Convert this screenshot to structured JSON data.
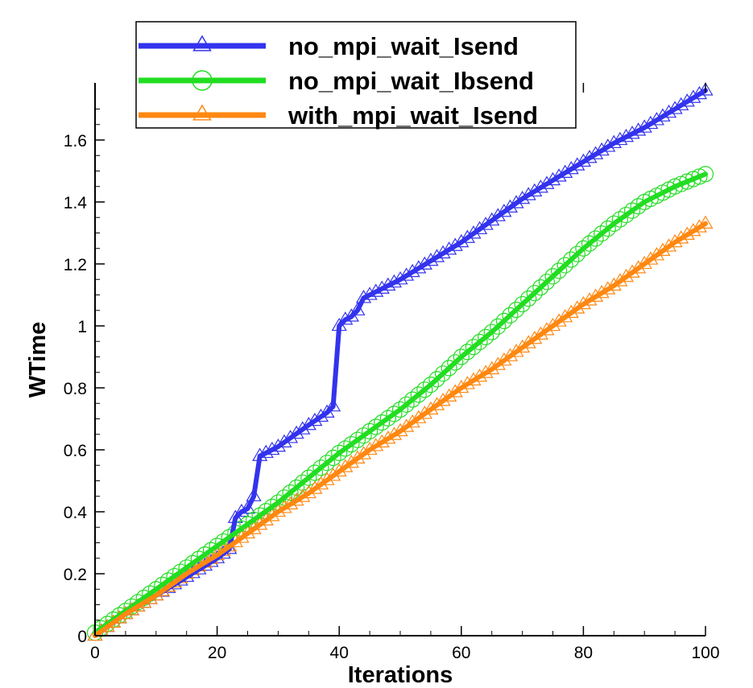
{
  "chart_data": {
    "type": "line",
    "title": "",
    "xlabel": "Iterations",
    "ylabel": "WTime",
    "xlim": [
      0,
      100
    ],
    "ylim": [
      0,
      1.75
    ],
    "x_ticks": [
      0,
      20,
      40,
      60,
      80,
      100
    ],
    "x_tick_labels": [
      "0",
      "20",
      "40",
      "60",
      "80",
      "100"
    ],
    "y_ticks": [
      0,
      0.2,
      0.4,
      0.6,
      0.8,
      1.0,
      1.2,
      1.4,
      1.6
    ],
    "y_tick_labels": [
      "0",
      "0.2",
      "0.4",
      "0.6",
      "0.8",
      "1",
      "1.2",
      "1.4",
      "1.6"
    ],
    "grid": false,
    "legend_position": "top",
    "series": [
      {
        "name": "no_mpi_wait_Isend",
        "color": "#3333ee",
        "marker": "triangle",
        "points": [
          [
            0,
            0
          ],
          [
            5,
            0.07
          ],
          [
            10,
            0.13
          ],
          [
            15,
            0.19
          ],
          [
            20,
            0.25
          ],
          [
            22,
            0.28
          ],
          [
            23,
            0.38
          ],
          [
            24,
            0.4
          ],
          [
            25,
            0.41
          ],
          [
            26,
            0.45
          ],
          [
            27,
            0.58
          ],
          [
            28,
            0.59
          ],
          [
            30,
            0.61
          ],
          [
            35,
            0.68
          ],
          [
            38,
            0.72
          ],
          [
            39,
            0.74
          ],
          [
            40,
            1.0
          ],
          [
            41,
            1.02
          ],
          [
            42,
            1.03
          ],
          [
            43,
            1.05
          ],
          [
            44,
            1.09
          ],
          [
            45,
            1.1
          ],
          [
            50,
            1.15
          ],
          [
            55,
            1.21
          ],
          [
            60,
            1.27
          ],
          [
            65,
            1.34
          ],
          [
            70,
            1.41
          ],
          [
            75,
            1.47
          ],
          [
            80,
            1.53
          ],
          [
            85,
            1.59
          ],
          [
            90,
            1.64
          ],
          [
            95,
            1.7
          ],
          [
            100,
            1.76
          ]
        ]
      },
      {
        "name": "no_mpi_wait_Ibsend",
        "color": "#22dd22",
        "marker": "circle",
        "points": [
          [
            0,
            0.01
          ],
          [
            5,
            0.08
          ],
          [
            10,
            0.15
          ],
          [
            15,
            0.22
          ],
          [
            20,
            0.29
          ],
          [
            25,
            0.36
          ],
          [
            30,
            0.43
          ],
          [
            35,
            0.51
          ],
          [
            40,
            0.59
          ],
          [
            45,
            0.66
          ],
          [
            50,
            0.73
          ],
          [
            55,
            0.81
          ],
          [
            60,
            0.9
          ],
          [
            65,
            0.98
          ],
          [
            70,
            1.07
          ],
          [
            75,
            1.16
          ],
          [
            80,
            1.25
          ],
          [
            85,
            1.33
          ],
          [
            90,
            1.4
          ],
          [
            95,
            1.45
          ],
          [
            100,
            1.49
          ]
        ]
      },
      {
        "name": "with_mpi_wait_Isend",
        "color": "#ff8811",
        "marker": "triangle",
        "points": [
          [
            0,
            0
          ],
          [
            5,
            0.07
          ],
          [
            10,
            0.13
          ],
          [
            15,
            0.2
          ],
          [
            20,
            0.26
          ],
          [
            25,
            0.33
          ],
          [
            30,
            0.4
          ],
          [
            35,
            0.46
          ],
          [
            40,
            0.53
          ],
          [
            45,
            0.6
          ],
          [
            50,
            0.66
          ],
          [
            55,
            0.73
          ],
          [
            60,
            0.8
          ],
          [
            65,
            0.86
          ],
          [
            70,
            0.93
          ],
          [
            75,
            1.0
          ],
          [
            80,
            1.07
          ],
          [
            85,
            1.13
          ],
          [
            90,
            1.2
          ],
          [
            95,
            1.27
          ],
          [
            100,
            1.33
          ]
        ]
      }
    ]
  }
}
